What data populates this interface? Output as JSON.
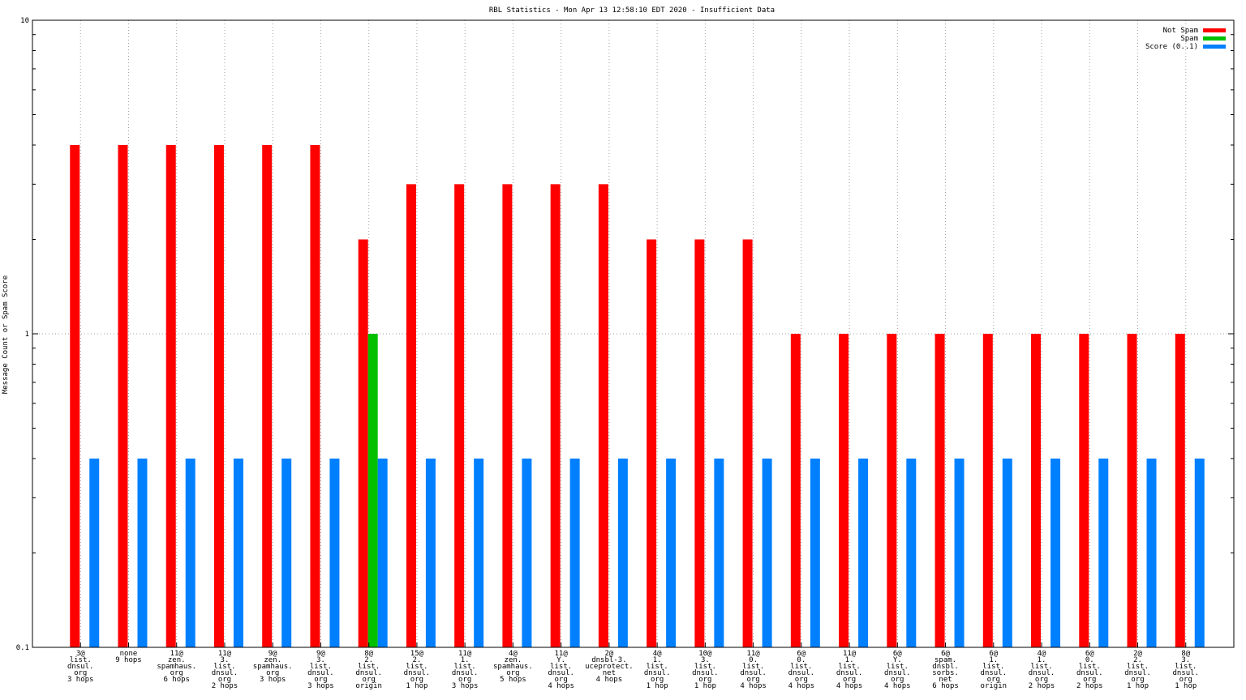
{
  "chart_data": {
    "type": "bar",
    "title": "RBL Statistics - Mon Apr 13 12:58:10 EDT 2020 - Insufficient Data",
    "xlabel": "",
    "ylabel": "Message Count or Spam Score",
    "yscale": "log",
    "ylim": [
      0.1,
      10
    ],
    "yticks": [
      {
        "value": 10,
        "label": "10"
      },
      {
        "value": 1,
        "label": "1"
      },
      {
        "value": 0.1,
        "label": "0.1"
      }
    ],
    "grid": true,
    "legend_position": "top-right",
    "categories": [
      "3@\nlist.\ndnsul.\norg\n3 hops",
      "none\n9 hops",
      "11@\nzen.\nspamhaus.\norg\n6 hops",
      "11@\n3.\nlist.\ndnsul.\norg\n2 hops",
      "9@\nzen.\nspamhaus.\norg\n3 hops",
      "9@\n3.\nlist.\ndnsul.\norg\n3 hops",
      "8@\n2.\nlist.\ndnsul.\norg\norigin",
      "15@\n2.\nlist.\ndnsul.\norg\n1 hop",
      "11@\n1.\nlist.\ndnsul.\norg\n3 hops",
      "4@\nzen.\nspamhaus.\norg\n5 hops",
      "11@\nY.\nlist.\ndnsul.\norg\n4 hops",
      "2@\ndnsbl-3.\nuceprotect.\nnet\n4 hops",
      "4@\n1.\nlist.\ndnsul.\norg\n1 hop",
      "10@\n3.\nlist.\ndnsul.\norg\n1 hop",
      "11@\n0.\nlist.\ndnsul.\norg\n4 hops",
      "6@\n0.\nlist.\ndnsul.\norg\n4 hops",
      "11@\n1.\nlist.\ndnsul.\norg\n4 hops",
      "6@\nY.\nlist.\ndnsul.\norg\n4 hops",
      "6@\nspam.\ndnsbl.\nsorbs.\nnet\n6 hops",
      "6@\n1.\nlist.\ndnsul.\norg\norigin",
      "4@\n1.\nlist.\ndnsul.\norg\n2 hops",
      "6@\n0.\nlist.\ndnsul.\norg\n2 hops",
      "2@\n2.\nlist.\ndnsul.\norg\n1 hop",
      "8@\n3.\nlist.\ndnsul.\norg\n1 hop"
    ],
    "series": [
      {
        "name": "Not Spam",
        "color": "#ff0000",
        "values": [
          4,
          4,
          4,
          4,
          4,
          4,
          2,
          3,
          3,
          3,
          3,
          3,
          2,
          2,
          2,
          1,
          1,
          1,
          1,
          1,
          1,
          1,
          1,
          1
        ]
      },
      {
        "name": "Spam",
        "color": "#00c000",
        "values": [
          0,
          0,
          0,
          0,
          0,
          0,
          1,
          0,
          0,
          0,
          0,
          0,
          0,
          0,
          0,
          0,
          0,
          0,
          0,
          0,
          0,
          0,
          0,
          0
        ]
      },
      {
        "name": "Score (0..1)",
        "color": "#0080ff",
        "values": [
          0.4,
          0.4,
          0.4,
          0.4,
          0.4,
          0.4,
          0.4,
          0.4,
          0.4,
          0.4,
          0.4,
          0.4,
          0.4,
          0.4,
          0.4,
          0.4,
          0.4,
          0.4,
          0.4,
          0.4,
          0.4,
          0.4,
          0.4,
          0.4
        ]
      }
    ]
  }
}
